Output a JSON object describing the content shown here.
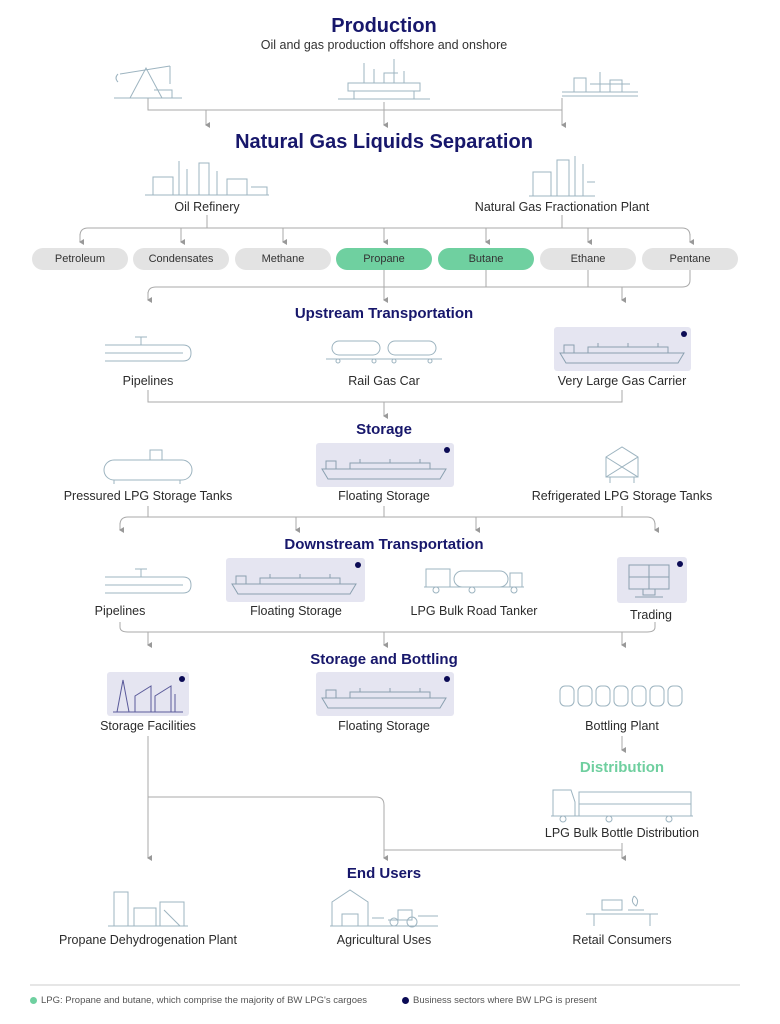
{
  "colors": {
    "title": "#17176b",
    "lpg": "#6fd0a0",
    "present": "#0b0b55",
    "pill": "#e3e3e3",
    "highlight_box": "#e5e5f1",
    "icon_line": "#9db4c0"
  },
  "production": {
    "title": "Production",
    "subtitle": "Oil and gas production offshore and onshore",
    "icons": [
      "pump-jack-icon",
      "offshore-platform-icon",
      "onshore-facility-icon"
    ]
  },
  "ngl": {
    "title": "Natural Gas Liquids Separation",
    "sources": [
      "Oil Refinery",
      "Natural Gas Fractionation Plant"
    ],
    "products": [
      {
        "label": "Petroleum",
        "lpg": false
      },
      {
        "label": "Condensates",
        "lpg": false
      },
      {
        "label": "Methane",
        "lpg": false
      },
      {
        "label": "Propane",
        "lpg": true
      },
      {
        "label": "Butane",
        "lpg": true
      },
      {
        "label": "Ethane",
        "lpg": false
      },
      {
        "label": "Pentane",
        "lpg": false
      }
    ]
  },
  "upstream": {
    "title": "Upstream Transportation",
    "items": [
      {
        "label": "Pipelines",
        "present": false
      },
      {
        "label": "Rail Gas Car",
        "present": false
      },
      {
        "label": "Very Large Gas Carrier",
        "present": true
      }
    ]
  },
  "storage": {
    "title": "Storage",
    "items": [
      {
        "label": "Pressured LPG Storage Tanks",
        "present": false
      },
      {
        "label": "Floating Storage",
        "present": true
      },
      {
        "label": "Refrigerated LPG Storage Tanks",
        "present": false
      }
    ]
  },
  "downstream": {
    "title": "Downstream Transportation",
    "items": [
      {
        "label": "Pipelines",
        "present": false
      },
      {
        "label": "Floating Storage",
        "present": true
      },
      {
        "label": "LPG Bulk Road Tanker",
        "present": false
      },
      {
        "label": "Trading",
        "present": true
      }
    ]
  },
  "bottling": {
    "title": "Storage and Bottling",
    "items": [
      {
        "label": "Storage Facilities",
        "present": true
      },
      {
        "label": "Floating Storage",
        "present": true
      },
      {
        "label": "Bottling Plant",
        "present": false
      }
    ]
  },
  "distribution": {
    "title": "Distribution",
    "item": "LPG Bulk Bottle Distribution"
  },
  "end_users": {
    "title": "End Users",
    "items": [
      "Propane Dehydrogenation Plant",
      "Agricultural Uses",
      "Retail Consumers"
    ]
  },
  "legend": {
    "lpg": "LPG: Propane and butane, which comprise the majority of BW LPG's cargoes",
    "present": "Business sectors where BW LPG is present"
  }
}
